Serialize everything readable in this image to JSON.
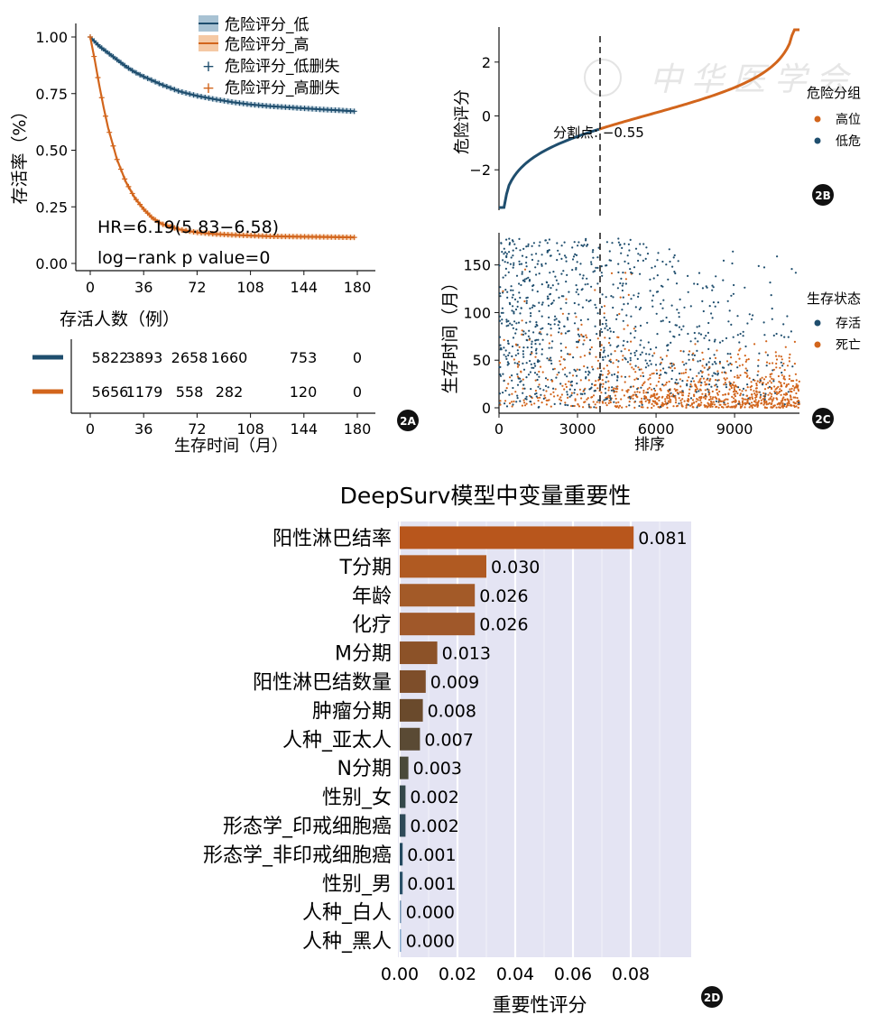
{
  "colors": {
    "low": "#1f4e6e",
    "high": "#d2651c",
    "low_fill": "#a8c2d3",
    "high_fill": "#f5c9a4",
    "panel_bg": "#e4e4f3",
    "dashed": "#222222"
  },
  "panel_labels": {
    "a": "2A",
    "b": "2B",
    "c": "2C",
    "d": "2D"
  },
  "watermark": "中华医学会",
  "chart_data": [
    {
      "id": "2A",
      "type": "line",
      "ylabel": "存活率（%）",
      "xticks": [
        0,
        36,
        72,
        108,
        144,
        180
      ],
      "yticks": [
        "0.00",
        "0.25",
        "0.50",
        "0.75",
        "1.00"
      ],
      "xlim": [
        0,
        180
      ],
      "ylim": [
        0,
        1
      ],
      "legend": [
        "危险评分_低",
        "危险评分_高",
        "危险评分_低删失",
        "危险评分_高删失"
      ],
      "annotations": [
        "HR=6.19(5.83−6.58)",
        "log−rank p value=0"
      ],
      "series": [
        {
          "name": "危险评分_低",
          "x": [
            0,
            6,
            12,
            18,
            24,
            30,
            36,
            48,
            60,
            72,
            84,
            96,
            108,
            120,
            132,
            144,
            156,
            168,
            178
          ],
          "y": [
            1.0,
            0.96,
            0.93,
            0.9,
            0.87,
            0.845,
            0.825,
            0.79,
            0.76,
            0.74,
            0.725,
            0.712,
            0.702,
            0.695,
            0.69,
            0.685,
            0.68,
            0.676,
            0.672
          ]
        },
        {
          "name": "危险评分_高",
          "x": [
            0,
            3,
            6,
            9,
            12,
            18,
            24,
            30,
            36,
            42,
            48,
            60,
            72,
            84,
            96,
            108,
            120,
            132,
            144,
            156,
            168,
            178
          ],
          "y": [
            1.0,
            0.9,
            0.79,
            0.69,
            0.6,
            0.46,
            0.36,
            0.29,
            0.24,
            0.2,
            0.175,
            0.15,
            0.137,
            0.13,
            0.126,
            0.123,
            0.12,
            0.119,
            0.118,
            0.117,
            0.116,
            0.115
          ]
        }
      ],
      "risk_table": {
        "title": "存活人数（例）",
        "xlabel": "生存时间（月）",
        "rows": [
          {
            "group": "危险评分_低",
            "values": [
              "5822",
              "3893",
              "2658",
              "1660",
              "753",
              "0"
            ]
          },
          {
            "group": "危险评分_高",
            "values": [
              "5656",
              "1179",
              "558",
              "282",
              "120",
              "0"
            ]
          }
        ]
      }
    },
    {
      "id": "2B",
      "type": "line",
      "ylabel": "危险评分",
      "yticks": [
        "−2",
        "0",
        "2"
      ],
      "ylim": [
        -3.5,
        3.3
      ],
      "xlim": [
        0,
        11478
      ],
      "cutoff": {
        "x": 3900,
        "value": -0.55,
        "label": "分割点: −0.55"
      },
      "legend_title": "危险分组",
      "legend": [
        "高位",
        "低危"
      ]
    },
    {
      "id": "2C",
      "type": "scatter",
      "ylabel": "生存时间（月）",
      "xlabel": "排序",
      "xticks": [
        "0",
        "3000",
        "6000",
        "9000"
      ],
      "yticks": [
        "0",
        "50",
        "100",
        "150"
      ],
      "xlim": [
        0,
        11478
      ],
      "ylim": [
        0,
        180
      ],
      "legend_title": "生存状态",
      "legend": [
        "存活",
        "死亡"
      ]
    },
    {
      "id": "2D",
      "type": "bar",
      "title": "DeepSurv模型中变量重要性",
      "xlabel": "重要性评分",
      "xticks": [
        "0.00",
        "0.02",
        "0.04",
        "0.06",
        "0.08"
      ],
      "xlim": [
        0,
        0.1
      ],
      "categories": [
        "阳性淋巴结率",
        "T分期",
        "年龄",
        "化疗",
        "M分期",
        "阳性淋巴结数量",
        "肿瘤分期",
        "人种_亚太人",
        "N分期",
        "性别_女",
        "形态学_印戒细胞癌",
        "形态学_非印戒细胞癌",
        "性别_男",
        "人种_白人",
        "人种_黑人"
      ],
      "values": [
        0.081,
        0.03,
        0.026,
        0.026,
        0.013,
        0.009,
        0.008,
        0.007,
        0.003,
        0.002,
        0.002,
        0.001,
        0.001,
        0.0,
        0.0
      ],
      "labels": [
        "0.081",
        "0.030",
        "0.026",
        "0.026",
        "0.013",
        "0.009",
        "0.008",
        "0.007",
        "0.003",
        "0.002",
        "0.002",
        "0.001",
        "0.001",
        "0.000",
        "0.000"
      ],
      "bar_colors": [
        "#b8561c",
        "#b05a22",
        "#a35a28",
        "#a0582a",
        "#8c5228",
        "#7e4e2a",
        "#6a4a2c",
        "#5a4a34",
        "#4a4a3a",
        "#34484a",
        "#2e4a58",
        "#244a60",
        "#2a5068",
        "#7a9ab8",
        "#8aaed0"
      ]
    }
  ]
}
